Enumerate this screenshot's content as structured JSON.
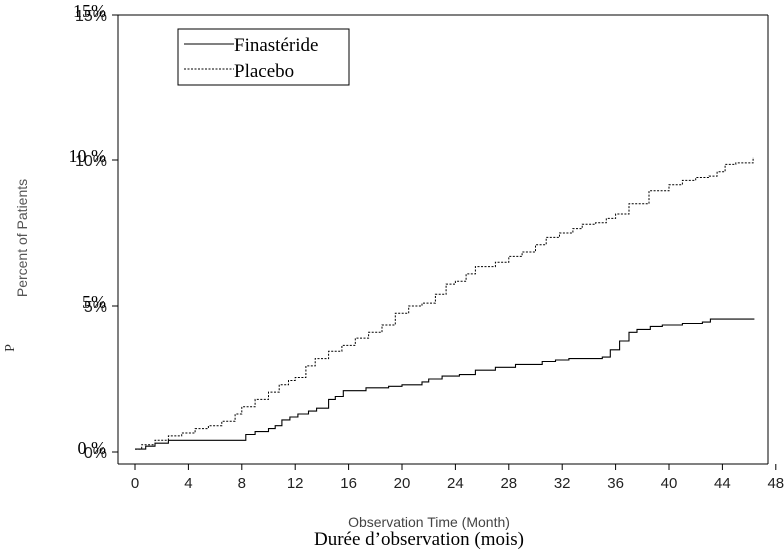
{
  "chart_data": {
    "type": "line",
    "xlabel": "Observation Time (Month)",
    "xlabel_fr": "Durée d’observation (mois)",
    "ylabel": "Percent of Patients",
    "x_ticks": [
      0,
      4,
      8,
      12,
      16,
      20,
      24,
      28,
      32,
      36,
      40,
      44,
      48
    ],
    "y_ticks": [
      {
        "value": 0,
        "label": "0%",
        "label_fr": "0 %"
      },
      {
        "value": 5,
        "label": "5%",
        "label_fr": "5%"
      },
      {
        "value": 10,
        "label": "10%",
        "label_fr": "10 %"
      },
      {
        "value": 15,
        "label": "15%",
        "label_fr": "15%"
      }
    ],
    "xlim": [
      -1,
      48
    ],
    "ylim": [
      0,
      15
    ],
    "grid": false,
    "legend_position": "top-left",
    "series": [
      {
        "name": "Finastéride",
        "style": "solid",
        "color": "#000000",
        "points": [
          [
            0,
            0.1
          ],
          [
            0.8,
            0.2
          ],
          [
            1.5,
            0.3
          ],
          [
            2.5,
            0.4
          ],
          [
            4,
            0.4
          ],
          [
            6,
            0.4
          ],
          [
            7.8,
            0.4
          ],
          [
            8.3,
            0.6
          ],
          [
            9,
            0.7
          ],
          [
            10,
            0.8
          ],
          [
            10.5,
            0.9
          ],
          [
            11,
            1.1
          ],
          [
            11.6,
            1.2
          ],
          [
            12.2,
            1.3
          ],
          [
            13,
            1.4
          ],
          [
            13.6,
            1.5
          ],
          [
            14.5,
            1.8
          ],
          [
            15,
            1.9
          ],
          [
            15.6,
            2.1
          ],
          [
            16.8,
            2.1
          ],
          [
            17.3,
            2.2
          ],
          [
            19,
            2.25
          ],
          [
            20,
            2.3
          ],
          [
            21.5,
            2.4
          ],
          [
            22,
            2.5
          ],
          [
            23,
            2.6
          ],
          [
            24.3,
            2.65
          ],
          [
            25.5,
            2.8
          ],
          [
            27,
            2.9
          ],
          [
            28.5,
            3.0
          ],
          [
            30.5,
            3.1
          ],
          [
            31.5,
            3.15
          ],
          [
            32.5,
            3.2
          ],
          [
            35,
            3.25
          ],
          [
            35.6,
            3.5
          ],
          [
            36.3,
            3.8
          ],
          [
            37,
            4.1
          ],
          [
            37.6,
            4.2
          ],
          [
            38.6,
            4.3
          ],
          [
            39.5,
            4.35
          ],
          [
            41,
            4.4
          ],
          [
            42.5,
            4.45
          ],
          [
            43.1,
            4.55
          ],
          [
            44,
            4.55
          ],
          [
            45,
            4.55
          ],
          [
            46.4,
            4.55
          ]
        ]
      },
      {
        "name": "Placebo",
        "style": "dashed",
        "color": "#000000",
        "points": [
          [
            0,
            0.1
          ],
          [
            0.5,
            0.25
          ],
          [
            1.5,
            0.4
          ],
          [
            2.5,
            0.55
          ],
          [
            3.5,
            0.65
          ],
          [
            4.5,
            0.8
          ],
          [
            5.5,
            0.9
          ],
          [
            6.5,
            1.05
          ],
          [
            7.5,
            1.3
          ],
          [
            8,
            1.55
          ],
          [
            9,
            1.8
          ],
          [
            10,
            2.05
          ],
          [
            10.8,
            2.3
          ],
          [
            11.5,
            2.45
          ],
          [
            12,
            2.55
          ],
          [
            12.8,
            2.95
          ],
          [
            13.5,
            3.2
          ],
          [
            14.5,
            3.45
          ],
          [
            15.5,
            3.65
          ],
          [
            16.5,
            3.9
          ],
          [
            17.5,
            4.1
          ],
          [
            18.5,
            4.35
          ],
          [
            19.5,
            4.75
          ],
          [
            20.5,
            5.0
          ],
          [
            21.5,
            5.1
          ],
          [
            22.5,
            5.4
          ],
          [
            23.3,
            5.75
          ],
          [
            24,
            5.85
          ],
          [
            24.8,
            6.1
          ],
          [
            25.5,
            6.35
          ],
          [
            27,
            6.5
          ],
          [
            28,
            6.7
          ],
          [
            29,
            6.85
          ],
          [
            30,
            7.1
          ],
          [
            30.8,
            7.35
          ],
          [
            31.8,
            7.5
          ],
          [
            32.8,
            7.65
          ],
          [
            33.5,
            7.8
          ],
          [
            34.5,
            7.85
          ],
          [
            35.3,
            8.0
          ],
          [
            36,
            8.15
          ],
          [
            37,
            8.5
          ],
          [
            38.5,
            8.95
          ],
          [
            40,
            9.15
          ],
          [
            41,
            9.3
          ],
          [
            42,
            9.4
          ],
          [
            43,
            9.45
          ],
          [
            43.6,
            9.6
          ],
          [
            44.2,
            9.85
          ],
          [
            45,
            9.9
          ],
          [
            46,
            9.9
          ],
          [
            46.3,
            10.1
          ]
        ]
      }
    ]
  }
}
